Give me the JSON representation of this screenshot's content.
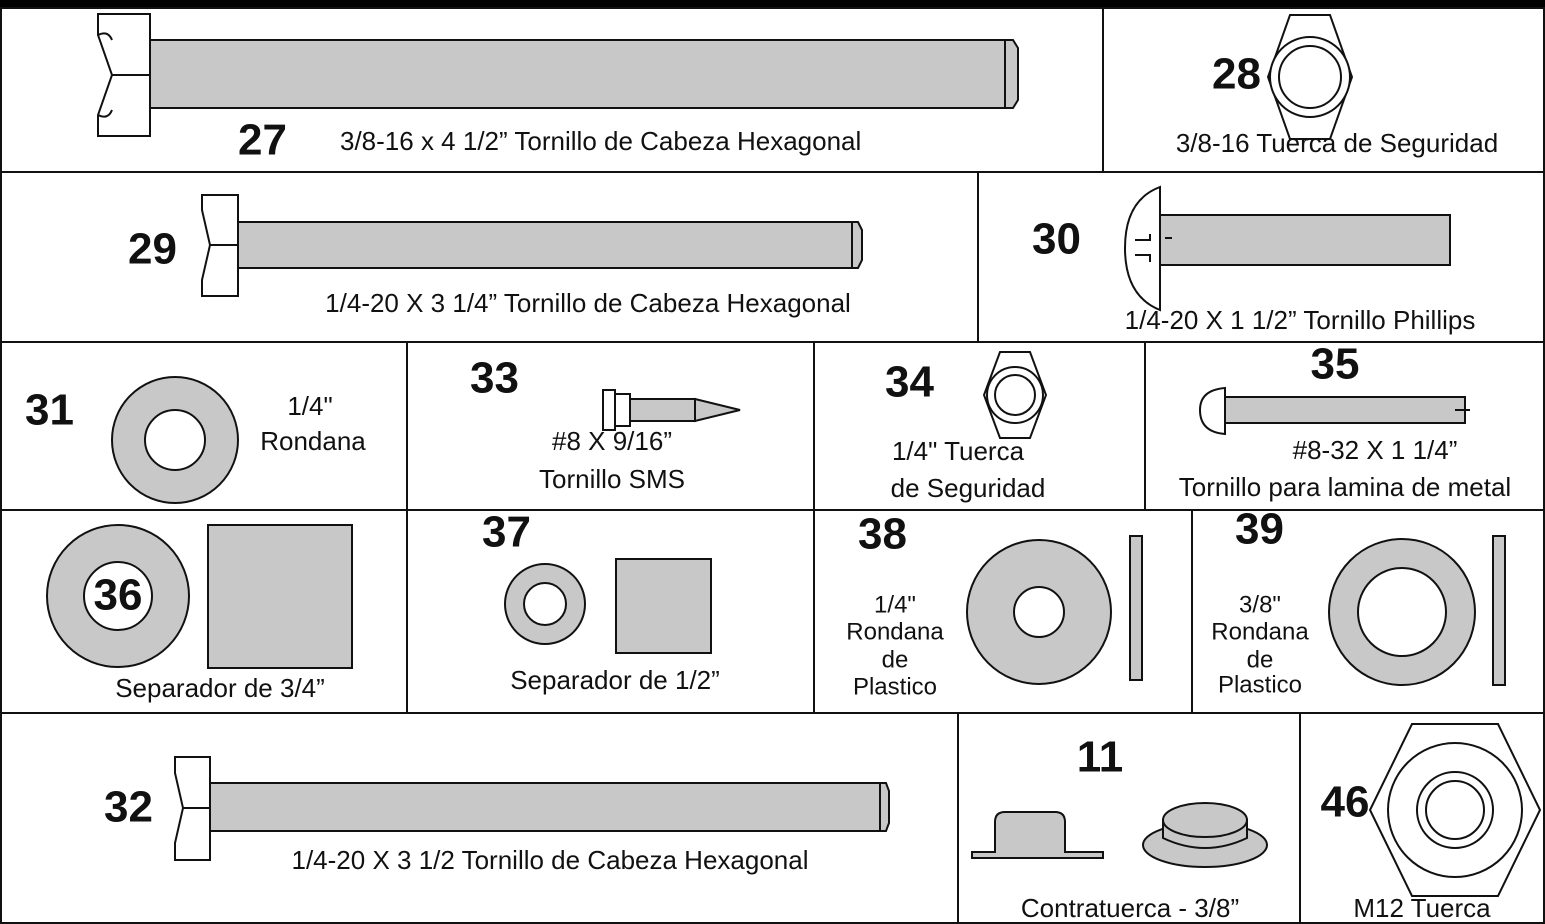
{
  "parts": [
    {
      "number": "27",
      "label": [
        "3/8-16 x 4 1/2” Tornillo de Cabeza Hexagonal"
      ]
    },
    {
      "number": "28",
      "label": [
        "3/8-16 Tuerca de Seguridad"
      ]
    },
    {
      "number": "29",
      "label": [
        "1/4-20 X 3 1/4” Tornillo de Cabeza Hexagonal"
      ]
    },
    {
      "number": "30",
      "label": [
        "1/4-20 X 1 1/2”  Tornillo Phillips"
      ]
    },
    {
      "number": "31",
      "label": [
        "1/4\"",
        "Rondana"
      ]
    },
    {
      "number": "33",
      "label": [
        "#8 X 9/16”",
        "Tornillo SMS"
      ]
    },
    {
      "number": "34",
      "label": [
        "1/4\" Tuerca",
        "de Seguridad"
      ]
    },
    {
      "number": "35",
      "label": [
        "#8-32 X 1 1/4”",
        "Tornillo para lamina de metal"
      ]
    },
    {
      "number": "36",
      "label": [
        "Separador de 3/4”"
      ]
    },
    {
      "number": "37",
      "label": [
        "Separador de 1/2”"
      ]
    },
    {
      "number": "38",
      "label": [
        "1/4\"",
        "Rondana",
        "de",
        "Plastico"
      ]
    },
    {
      "number": "39",
      "label": [
        "3/8\"",
        "Rondana",
        "de",
        "Plastico"
      ]
    },
    {
      "number": "32",
      "label": [
        "1/4-20 X 3 1/2 Tornillo de Cabeza Hexagonal"
      ]
    },
    {
      "number": "11",
      "label": [
        "Contratuerca - 3/8”"
      ]
    },
    {
      "number": "46",
      "label": [
        "M12 Tuerca"
      ]
    }
  ]
}
